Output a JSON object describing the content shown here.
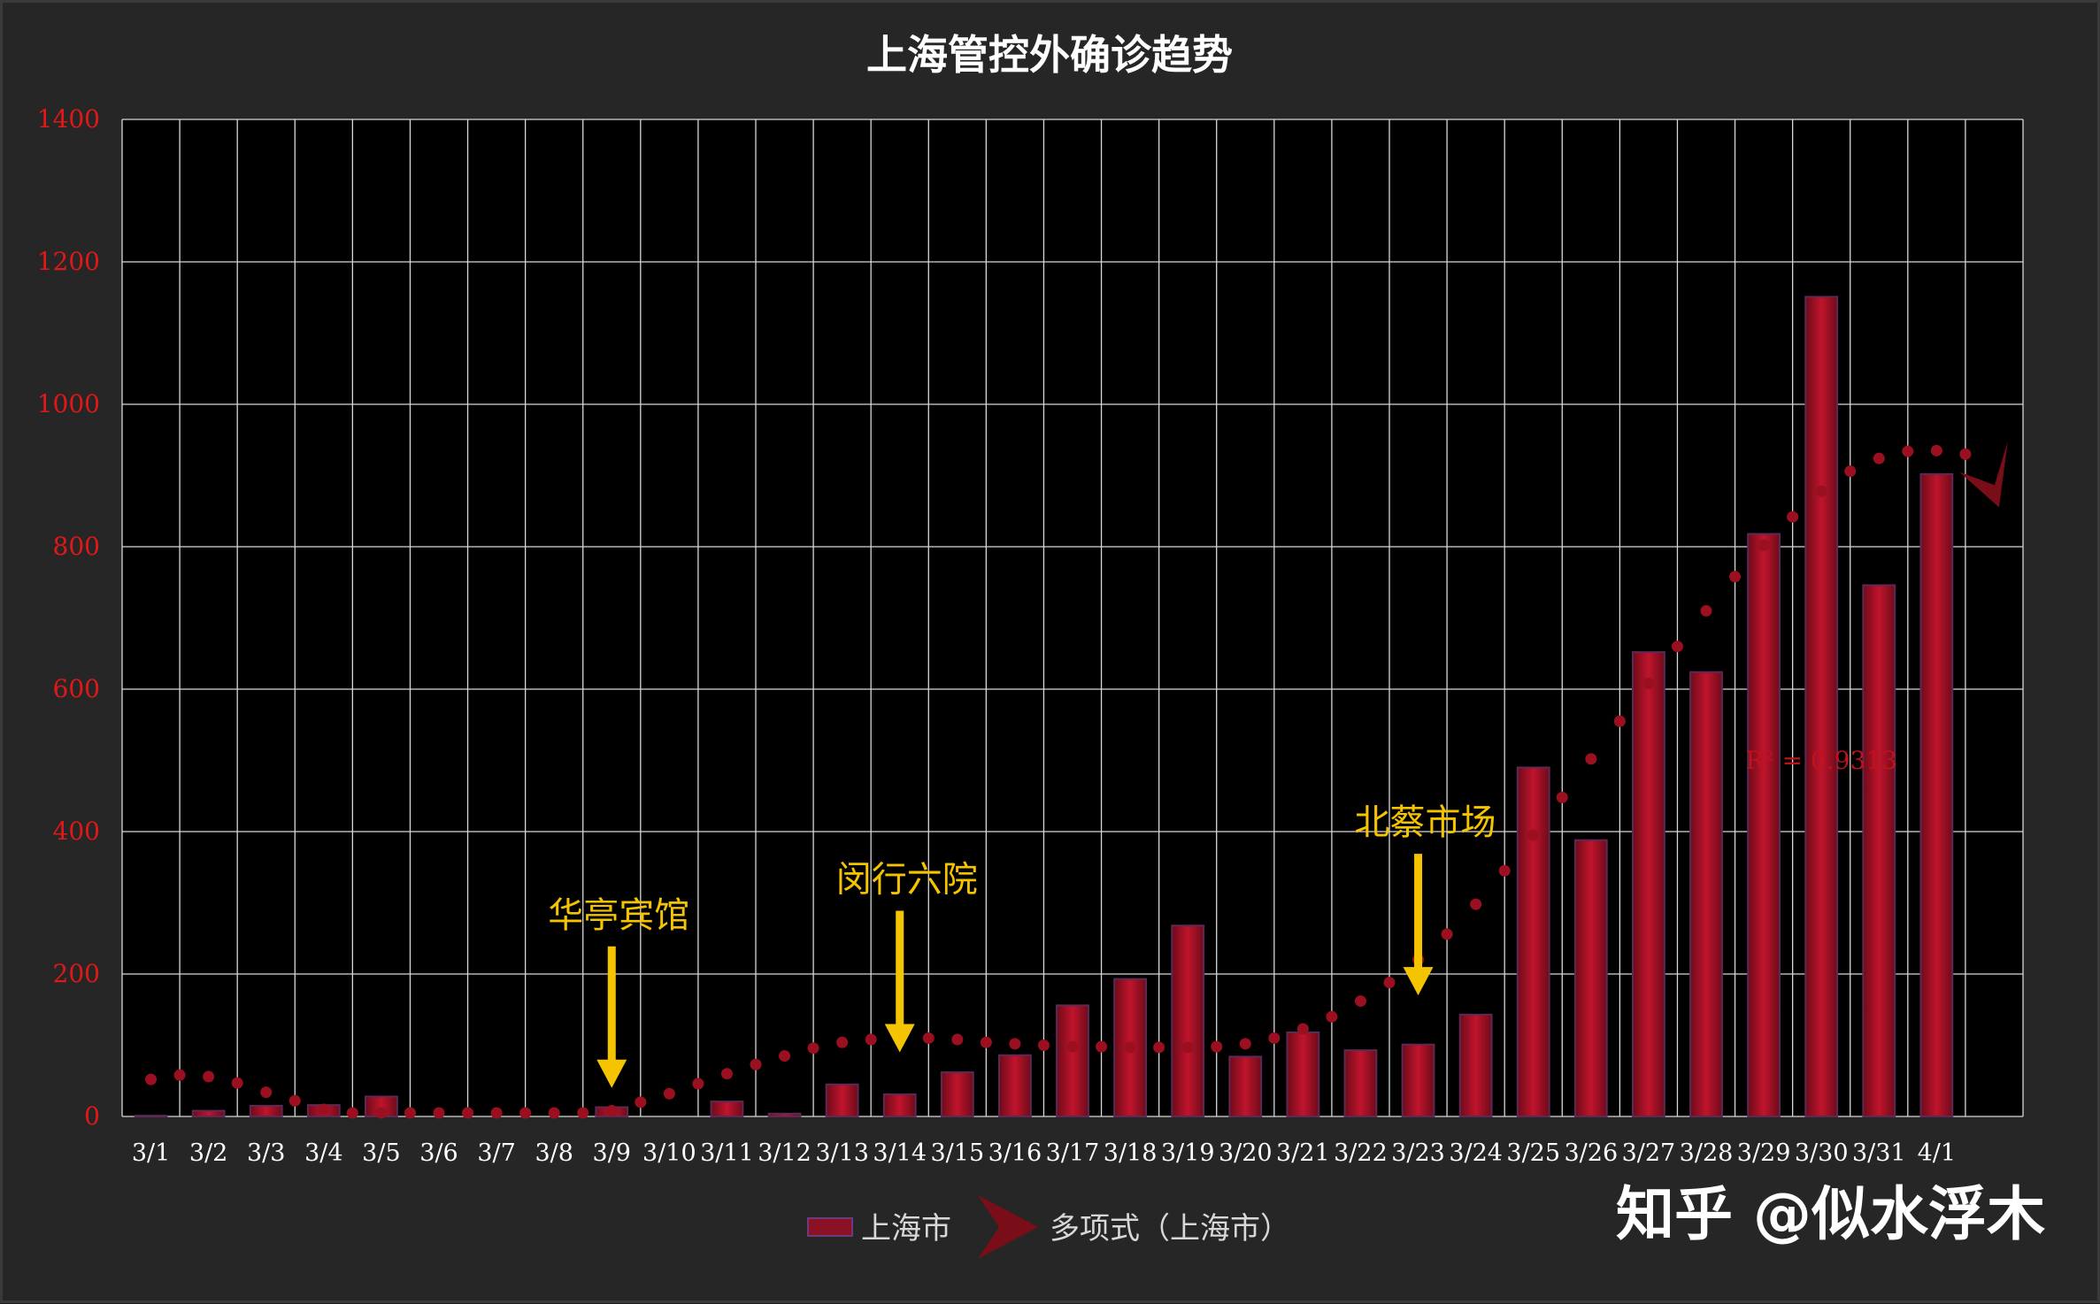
{
  "chart_data": {
    "type": "bar",
    "title": "上海管控外确诊趋势",
    "xlabel": "",
    "ylabel": "",
    "ylim": [
      0,
      1400
    ],
    "yticks": [
      0,
      200,
      400,
      600,
      800,
      1000,
      1200,
      1400
    ],
    "grid": true,
    "legend_position": "bottom",
    "categories": [
      "3/1",
      "3/2",
      "3/3",
      "3/4",
      "3/5",
      "3/6",
      "3/7",
      "3/8",
      "3/9",
      "3/10",
      "3/11",
      "3/12",
      "3/13",
      "3/14",
      "3/15",
      "3/16",
      "3/17",
      "3/18",
      "3/19",
      "3/20",
      "3/21",
      "3/22",
      "3/23",
      "3/24",
      "3/25",
      "3/26",
      "3/27",
      "3/28",
      "3/29",
      "3/30",
      "3/31",
      "4/1"
    ],
    "series": [
      {
        "name": "上海市",
        "type": "bar",
        "color": "#b01228",
        "values": [
          1,
          8,
          15,
          16,
          28,
          0,
          0,
          0,
          13,
          0,
          21,
          4,
          45,
          31,
          62,
          86,
          156,
          193,
          268,
          84,
          118,
          93,
          101,
          143,
          490,
          388,
          652,
          624,
          818,
          1151,
          746,
          902
        ]
      },
      {
        "name": "多项式（上海市）",
        "type": "line",
        "style": "dotted",
        "color": "#9a1020",
        "x": [
          1,
          1.5,
          2,
          2.5,
          3,
          3.5,
          4,
          4.5,
          5,
          5.5,
          6,
          6.5,
          7,
          7.5,
          8,
          8.5,
          9,
          9.5,
          10,
          10.5,
          11,
          11.5,
          12,
          12.5,
          13,
          13.5,
          14,
          14.5,
          15,
          15.5,
          16,
          16.5,
          17,
          17.5,
          18,
          18.5,
          19,
          19.5,
          20,
          20.5,
          21,
          21.5,
          22,
          22.5,
          23,
          23.5,
          24,
          24.5,
          25,
          25.5,
          26,
          26.5,
          27,
          27.5,
          28,
          28.5,
          29,
          29.5,
          30,
          30.5,
          31,
          31.5,
          32,
          32.5
        ],
        "values": [
          52,
          58,
          56,
          47,
          34,
          22,
          10,
          2,
          -4,
          -6,
          -5,
          0,
          4,
          3,
          -1,
          0,
          8,
          20,
          32,
          46,
          60,
          73,
          85,
          96,
          104,
          108,
          110,
          110,
          108,
          104,
          102,
          100,
          98,
          98,
          97,
          97,
          97,
          98,
          102,
          110,
          123,
          140,
          162,
          188,
          220,
          256,
          298,
          345,
          395,
          448,
          502,
          555,
          608,
          660,
          710,
          758,
          802,
          842,
          878,
          906,
          924,
          934,
          935,
          930
        ]
      }
    ],
    "annotations": [
      {
        "text": "华亭宾馆",
        "category": "3/9",
        "arrow_value": 40,
        "color": "#f5c400"
      },
      {
        "text": "闵行六院",
        "category": "3/14",
        "arrow_value": 90,
        "color": "#f5c400"
      },
      {
        "text": "北蔡市场",
        "category": "3/23",
        "arrow_value": 170,
        "color": "#f5c400"
      }
    ],
    "r_squared": "R² = 0.9313"
  },
  "watermark": "知乎 @似水浮木",
  "colors": {
    "background": "#262626",
    "plot_background": "#000000",
    "grid": "#d8d8d8",
    "axis_text": "#e01818",
    "category_text": "#ffffff",
    "title": "#ffffff",
    "bar": "#b01228",
    "trend": "#9a1020",
    "annotation": "#f5c400"
  }
}
